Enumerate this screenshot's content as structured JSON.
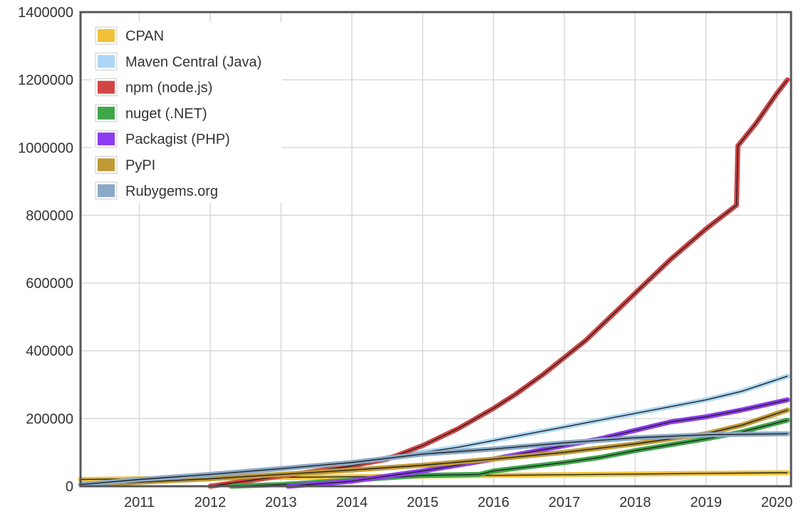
{
  "chart_data": {
    "type": "line",
    "title": "",
    "xlabel": "",
    "ylabel": "",
    "xlim": [
      2010.17,
      2020.2
    ],
    "ylim": [
      0,
      1400000
    ],
    "yticks": [
      0,
      200000,
      400000,
      600000,
      800000,
      1000000,
      1200000,
      1400000
    ],
    "ytick_labels": [
      "0",
      "200000",
      "400000",
      "600000",
      "800000",
      "1000000",
      "1200000",
      "1400000"
    ],
    "xticks": [
      2011,
      2012,
      2013,
      2014,
      2015,
      2016,
      2017,
      2018,
      2019,
      2020
    ],
    "xtick_labels": [
      "2011",
      "2012",
      "2013",
      "2014",
      "2015",
      "2016",
      "2017",
      "2018",
      "2019",
      "2020"
    ],
    "grid": true,
    "legend_position": "top-left",
    "series": [
      {
        "name": "CPAN",
        "color": "#f0c23a",
        "x": [
          2010.17,
          2011,
          2012,
          2013,
          2014,
          2015,
          2016,
          2017,
          2018,
          2019,
          2020.15
        ],
        "y": [
          20000,
          22000,
          24000,
          26000,
          28000,
          30000,
          32000,
          34000,
          36000,
          38000,
          40000
        ]
      },
      {
        "name": "Maven Central (Java)",
        "color": "#abd6f5",
        "x": [
          2014.5,
          2015,
          2015.5,
          2016,
          2016.5,
          2017,
          2017.5,
          2018,
          2018.5,
          2019,
          2019.5,
          2020.15
        ],
        "y": [
          85000,
          100000,
          115000,
          135000,
          155000,
          175000,
          195000,
          215000,
          235000,
          255000,
          280000,
          325000
        ]
      },
      {
        "name": "npm (node.js)",
        "color": "#d04545",
        "x": [
          2012,
          2013,
          2014,
          2014.5,
          2015,
          2015.5,
          2016,
          2016.3,
          2016.7,
          2017,
          2017.3,
          2017.5,
          2018,
          2018.5,
          2019,
          2019.43,
          2019.45,
          2019.7,
          2020,
          2020.15
        ],
        "y": [
          0,
          30000,
          60000,
          80000,
          120000,
          170000,
          230000,
          270000,
          330000,
          380000,
          430000,
          470000,
          570000,
          670000,
          760000,
          830000,
          1005000,
          1070000,
          1160000,
          1200000
        ]
      },
      {
        "name": "nuget (.NET)",
        "color": "#3fa64a",
        "x": [
          2012.3,
          2013,
          2014,
          2015,
          2015.8,
          2016,
          2017,
          2017.5,
          2018,
          2019,
          2019.5,
          2020.15
        ],
        "y": [
          0,
          5000,
          18000,
          32000,
          35000,
          45000,
          70000,
          85000,
          105000,
          140000,
          160000,
          195000
        ]
      },
      {
        "name": "Packagist (PHP)",
        "color": "#8c3cf0",
        "x": [
          2013.1,
          2014,
          2015,
          2016,
          2016.5,
          2017,
          2017.5,
          2018,
          2018.5,
          2019,
          2019.5,
          2020.15
        ],
        "y": [
          0,
          15000,
          45000,
          80000,
          100000,
          120000,
          140000,
          165000,
          190000,
          205000,
          225000,
          255000
        ]
      },
      {
        "name": "PyPI",
        "color": "#bf9a34",
        "x": [
          2010.3,
          2011,
          2012,
          2013,
          2014,
          2015,
          2016,
          2017,
          2018,
          2019,
          2019.5,
          2020.15
        ],
        "y": [
          5000,
          12000,
          22000,
          35000,
          48000,
          62000,
          80000,
          100000,
          125000,
          155000,
          180000,
          225000
        ]
      },
      {
        "name": "Rubygems.org",
        "color": "#8aaac8",
        "x": [
          2010.17,
          2011,
          2012,
          2013,
          2014,
          2015,
          2016,
          2017,
          2018,
          2019,
          2020.15
        ],
        "y": [
          5000,
          20000,
          35000,
          52000,
          70000,
          95000,
          110000,
          128000,
          143000,
          152000,
          155000
        ]
      }
    ]
  }
}
